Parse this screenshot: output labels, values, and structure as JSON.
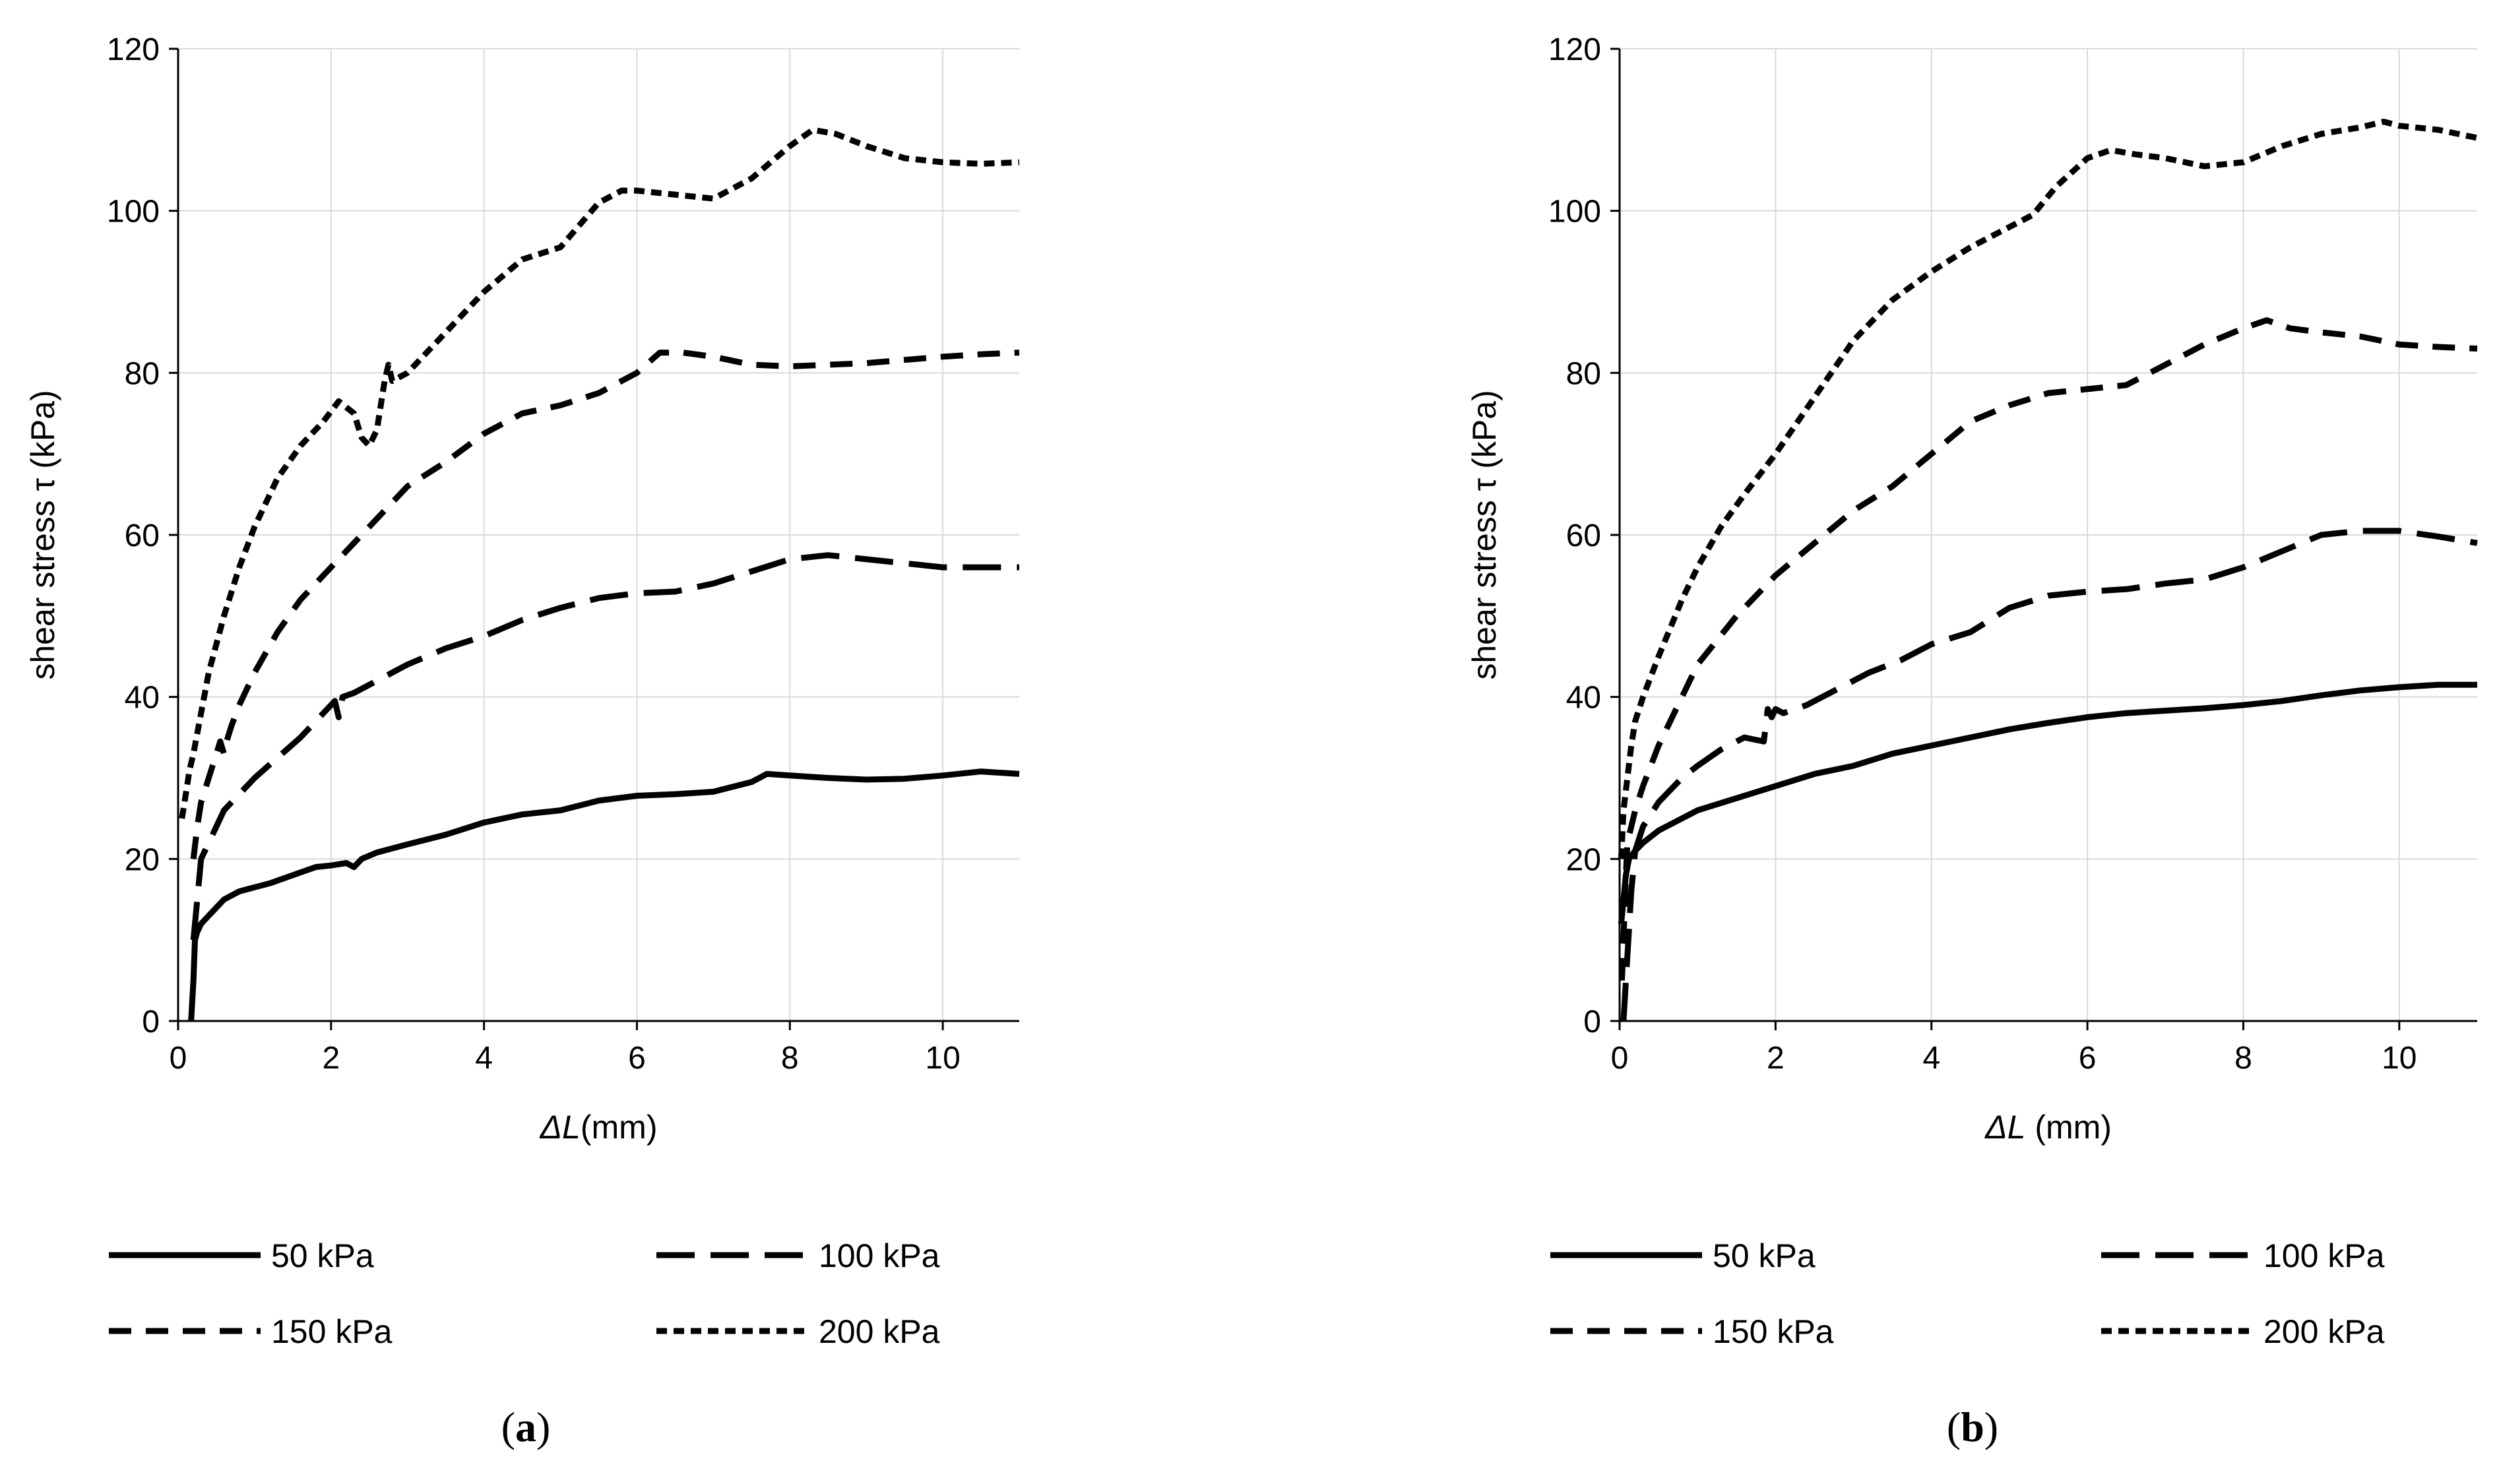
{
  "chart_data": [
    {
      "type": "line",
      "panel_label": "a",
      "xlabel_var": "ΔL",
      "xlabel_unit": "(mm)",
      "ylabel": "shear stress τ (kPa)",
      "xlim": [
        0,
        11
      ],
      "ylim": [
        0,
        120
      ],
      "xticks": [
        0,
        2,
        4,
        6,
        8,
        10
      ],
      "yticks": [
        0,
        20,
        40,
        60,
        80,
        100,
        120
      ],
      "grid": true,
      "legend_position": "bottom",
      "series": [
        {
          "name": "50 kPa",
          "dash": "solid",
          "x": [
            0.17,
            0.2,
            0.22,
            0.25,
            0.3,
            0.4,
            0.5,
            0.6,
            0.8,
            1.0,
            1.2,
            1.5,
            1.8,
            2.0,
            2.2,
            2.3,
            2.4,
            2.6,
            3.0,
            3.5,
            4.0,
            4.5,
            5.0,
            5.5,
            6.0,
            6.5,
            7.0,
            7.5,
            7.7,
            8.0,
            8.5,
            9.0,
            9.5,
            10.0,
            10.5,
            11.0
          ],
          "y": [
            0,
            5,
            10,
            11,
            12,
            13,
            14,
            15,
            16,
            16.5,
            17,
            18,
            19,
            19.2,
            19.5,
            19.0,
            20.0,
            20.8,
            21.8,
            23,
            24.5,
            25.5,
            26,
            27.2,
            27.8,
            28,
            28.3,
            29.5,
            30.5,
            30.3,
            30,
            29.8,
            29.9,
            30.3,
            30.8,
            30.5
          ]
        },
        {
          "name": "100 kPa",
          "dash": "long",
          "x": [
            0.2,
            0.25,
            0.3,
            0.4,
            0.5,
            0.6,
            0.8,
            1.0,
            1.3,
            1.6,
            1.9,
            2.05,
            2.1,
            2.15,
            2.3,
            2.6,
            3.0,
            3.5,
            4.0,
            4.5,
            5.0,
            5.5,
            6.0,
            6.5,
            7.0,
            7.5,
            8.0,
            8.5,
            9.0,
            9.5,
            10.0,
            10.5,
            11.0
          ],
          "y": [
            10,
            15,
            20,
            22,
            24,
            26,
            28,
            30,
            32.5,
            35,
            38,
            39.5,
            37.5,
            40,
            40.5,
            42,
            44,
            46,
            47.5,
            49.5,
            51,
            52.2,
            52.8,
            53,
            54,
            55.5,
            57,
            57.5,
            57,
            56.5,
            56,
            56,
            56
          ]
        },
        {
          "name": "150 kPa",
          "dash": "medium",
          "x": [
            0.2,
            0.25,
            0.3,
            0.4,
            0.5,
            0.55,
            0.6,
            0.65,
            0.7,
            0.8,
            1.0,
            1.3,
            1.6,
            2.0,
            2.5,
            3.0,
            3.5,
            4.0,
            4.5,
            5.0,
            5.5,
            6.0,
            6.3,
            6.6,
            7.0,
            7.5,
            8.0,
            8.5,
            9.0,
            9.5,
            10.0,
            10.5,
            11.0
          ],
          "y": [
            20,
            24,
            27,
            30,
            33,
            34.5,
            33,
            35,
            36.5,
            39,
            43,
            48,
            52,
            56,
            61,
            66,
            69,
            72.5,
            75,
            76,
            77.5,
            80,
            82.5,
            82.5,
            82,
            81,
            80.8,
            81,
            81.2,
            81.6,
            82,
            82.3,
            82.5
          ]
        },
        {
          "name": "200 kPa",
          "dash": "short",
          "x": [
            0.05,
            0.1,
            0.15,
            0.2,
            0.3,
            0.4,
            0.6,
            0.8,
            1.0,
            1.3,
            1.6,
            1.9,
            2.1,
            2.3,
            2.4,
            2.5,
            2.6,
            2.7,
            2.75,
            2.8,
            3.0,
            3.5,
            4.0,
            4.5,
            5.0,
            5.5,
            5.8,
            6.0,
            6.5,
            7.0,
            7.5,
            8.0,
            8.3,
            8.6,
            9.0,
            9.5,
            10.0,
            10.5,
            11.0
          ],
          "y": [
            25,
            28,
            31,
            33,
            38,
            43,
            50,
            56,
            61,
            67,
            71,
            74,
            76.5,
            75,
            72,
            71,
            73,
            79,
            81,
            79,
            80,
            85,
            90,
            94,
            95.5,
            101,
            102.5,
            102.5,
            102,
            101.5,
            104,
            108,
            110,
            109.5,
            108,
            106.5,
            106,
            105.8,
            106
          ]
        }
      ]
    },
    {
      "type": "line",
      "panel_label": "b",
      "xlabel_var": "ΔL",
      "xlabel_unit": " (mm)",
      "ylabel": "shear stress τ (kPa)",
      "xlim": [
        0,
        11
      ],
      "ylim": [
        0,
        120
      ],
      "xticks": [
        0,
        2,
        4,
        6,
        8,
        10
      ],
      "yticks": [
        0,
        20,
        40,
        60,
        80,
        100,
        120
      ],
      "grid": true,
      "legend_position": "bottom",
      "series": [
        {
          "name": "50 kPa",
          "dash": "solid",
          "x": [
            0.02,
            0.05,
            0.08,
            0.12,
            0.2,
            0.3,
            0.5,
            0.8,
            1.0,
            1.5,
            2.0,
            2.5,
            3.0,
            3.5,
            4.0,
            4.5,
            5.0,
            5.5,
            6.0,
            6.5,
            7.0,
            7.5,
            8.0,
            8.5,
            9.0,
            9.5,
            10.0,
            10.5,
            11.0
          ],
          "y": [
            12,
            15,
            18,
            20,
            21,
            22,
            23.5,
            25,
            26,
            27.5,
            29,
            30.5,
            31.5,
            33,
            34,
            35,
            36,
            36.8,
            37.5,
            38,
            38.3,
            38.6,
            39,
            39.5,
            40.2,
            40.8,
            41.2,
            41.5,
            41.5
          ]
        },
        {
          "name": "100 kPa",
          "dash": "long",
          "x": [
            0.05,
            0.1,
            0.15,
            0.2,
            0.3,
            0.5,
            0.8,
            1.0,
            1.3,
            1.6,
            1.85,
            1.9,
            1.95,
            2.0,
            2.1,
            2.4,
            2.8,
            3.2,
            3.6,
            4.0,
            4.5,
            5.0,
            5.5,
            6.0,
            6.5,
            7.0,
            7.5,
            8.0,
            8.5,
            9.0,
            9.5,
            10.0,
            10.5,
            11.0
          ],
          "y": [
            0,
            8,
            16,
            21,
            24,
            27,
            30,
            31.5,
            33.5,
            35,
            34.5,
            38.5,
            37.5,
            38.5,
            38,
            39,
            41,
            43,
            44.5,
            46.5,
            48,
            51,
            52.5,
            53,
            53.3,
            54,
            54.5,
            56,
            58,
            60,
            60.5,
            60.5,
            59.8,
            59
          ]
        },
        {
          "name": "150 kPa",
          "dash": "medium",
          "x": [
            0.03,
            0.05,
            0.08,
            0.1,
            0.15,
            0.2,
            0.3,
            0.5,
            0.8,
            1.0,
            1.5,
            2.0,
            2.5,
            3.0,
            3.5,
            4.0,
            4.5,
            5.0,
            5.5,
            6.0,
            6.5,
            7.0,
            7.5,
            8.0,
            8.3,
            8.6,
            9.0,
            9.5,
            10.0,
            10.5,
            11.0
          ],
          "y": [
            5,
            10,
            18,
            22,
            24,
            26,
            29,
            34,
            40,
            44,
            50,
            55,
            59,
            63,
            66,
            70,
            74,
            76,
            77.5,
            78,
            78.5,
            81,
            83.5,
            85.5,
            86.5,
            85.5,
            85,
            84.5,
            83.5,
            83.2,
            83
          ]
        },
        {
          "name": "200 kPa",
          "dash": "short",
          "x": [
            0.02,
            0.05,
            0.1,
            0.15,
            0.2,
            0.3,
            0.5,
            0.8,
            1.0,
            1.3,
            1.6,
            2.0,
            2.5,
            3.0,
            3.5,
            4.0,
            4.5,
            5.0,
            5.3,
            5.6,
            6.0,
            6.3,
            6.6,
            7.0,
            7.5,
            8.0,
            8.5,
            9.0,
            9.5,
            9.8,
            10.0,
            10.5,
            11.0
          ],
          "y": [
            20,
            26,
            30,
            34,
            37,
            40,
            45,
            52,
            56,
            61,
            65,
            70,
            77,
            84,
            89,
            92.5,
            95.5,
            98,
            99.5,
            103,
            106.5,
            107.5,
            107,
            106.5,
            105.5,
            106,
            108,
            109.5,
            110.3,
            111,
            110.5,
            110,
            109
          ]
        }
      ]
    }
  ]
}
